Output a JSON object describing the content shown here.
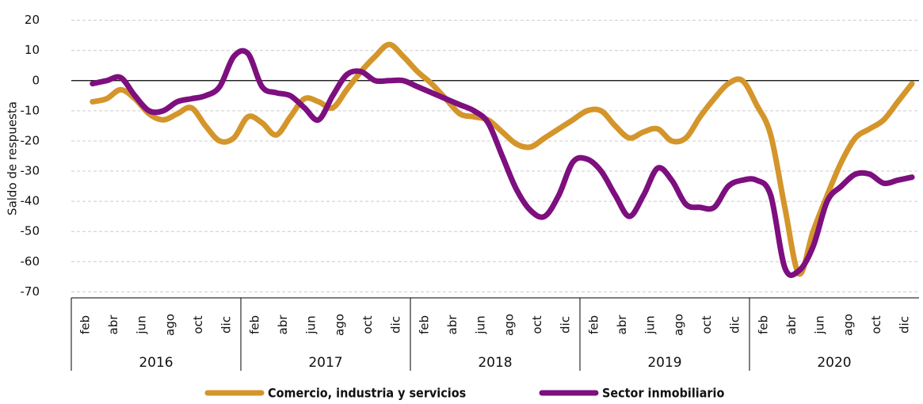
{
  "chart_data": {
    "type": "line",
    "y_label": "Saldo de respuesta",
    "categories": [
      null,
      "feb",
      null,
      "abr",
      null,
      "jun",
      null,
      "ago",
      null,
      "oct",
      null,
      "dic",
      null,
      "feb",
      null,
      "abr",
      null,
      "jun",
      null,
      "ago",
      null,
      "oct",
      null,
      "dic",
      null,
      "feb",
      null,
      "abr",
      null,
      "jun",
      null,
      "ago",
      null,
      "oct",
      null,
      "dic",
      null,
      "feb",
      null,
      "abr",
      null,
      "jun",
      null,
      "ago",
      null,
      "oct",
      null,
      "dic",
      null,
      "feb",
      null,
      "abr",
      null,
      "jun",
      null,
      "ago",
      null,
      "oct",
      null,
      "dic"
    ],
    "years": [
      "2016",
      "2017",
      "2018",
      "2019",
      "2020"
    ],
    "series": [
      {
        "name": "Comercio, industria y servicios",
        "color": "#d4952b",
        "values": [
          null,
          -7,
          -6,
          -3,
          -6,
          -11,
          -13,
          -11,
          -9,
          -15,
          -20,
          -19,
          -12,
          -14,
          -18,
          -12,
          -6,
          -7,
          -9,
          -3,
          3,
          8,
          12,
          8,
          3,
          -1,
          -6,
          -11,
          -12,
          -13,
          -17,
          -21,
          -22,
          -19,
          -16,
          -13,
          -10,
          -10,
          -15,
          -19,
          -17,
          -16,
          -20,
          -19,
          -12,
          -6,
          -1,
          0,
          -8,
          -18,
          -42,
          -64,
          -50,
          -38,
          -27,
          -19,
          -16,
          -13,
          -7,
          -1
        ]
      },
      {
        "name": "Sector inmobiliario",
        "color": "#7d0f7f",
        "values": [
          null,
          -1,
          0,
          1,
          -5,
          -10,
          -10,
          -7,
          -6,
          -5,
          -2,
          8,
          9,
          -2,
          -4,
          -5,
          -9,
          -13,
          -5,
          2,
          3,
          0,
          0,
          0,
          -2,
          -4,
          -6,
          -8,
          -10,
          -14,
          -25,
          -36,
          -43,
          -45,
          -38,
          -27,
          -26,
          -30,
          -38,
          -45,
          -38,
          -29,
          -33,
          -41,
          -42,
          -42,
          -35,
          -33,
          -33,
          -38,
          -62,
          -63,
          -55,
          -40,
          -35,
          -31,
          -31,
          -34,
          -33,
          -32
        ]
      }
    ],
    "ylim": [
      -72,
      22
    ],
    "yticks": [
      -70,
      -60,
      -50,
      -40,
      -30,
      -20,
      -10,
      0,
      10,
      20
    ],
    "grid": true
  }
}
